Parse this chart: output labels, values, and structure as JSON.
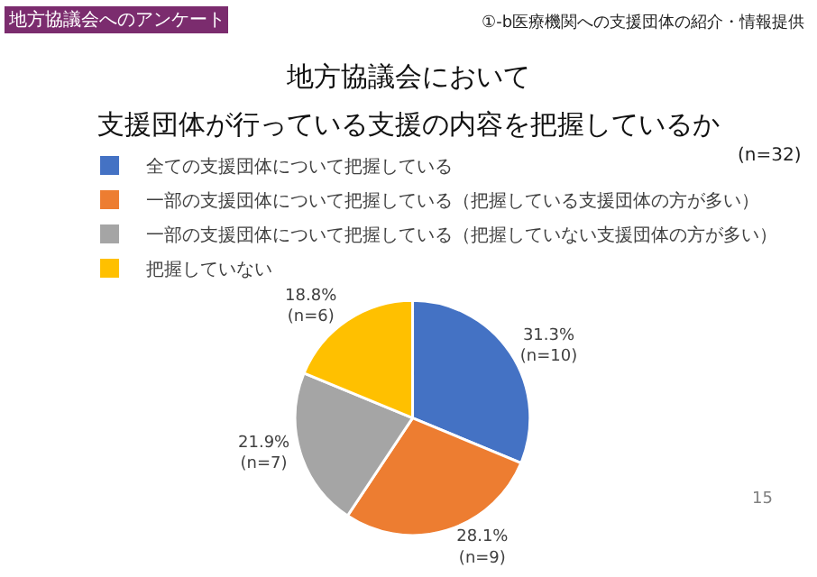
{
  "chart_data": {
    "type": "pie",
    "title": "地方協議会において",
    "subtitle": "支援団体が行っている支援の内容を把握しているか",
    "categories": [
      "全ての支援団体について把握している",
      "一部の支援団体について把握している（把握している支援団体の方が多い）",
      "一部の支援団体について把握している（把握していない支援団体の方が多い）",
      "把握していない"
    ],
    "values": [
      31.3,
      28.1,
      21.9,
      18.8
    ],
    "colors": [
      "#4472c4",
      "#ed7d31",
      "#a5a5a5",
      "#ffc000"
    ],
    "value_labels": [
      "31.3%\n(n=10)",
      "28.1%\n(n=9)",
      "21.9%\n(n=7)",
      "18.8%\n(n=6)"
    ],
    "legend": "top",
    "annotations": [
      "地方協議会へのアンケート",
      "①-b医療機関への支援団体の紹介・情報提供",
      "(n=32)",
      "15"
    ]
  }
}
